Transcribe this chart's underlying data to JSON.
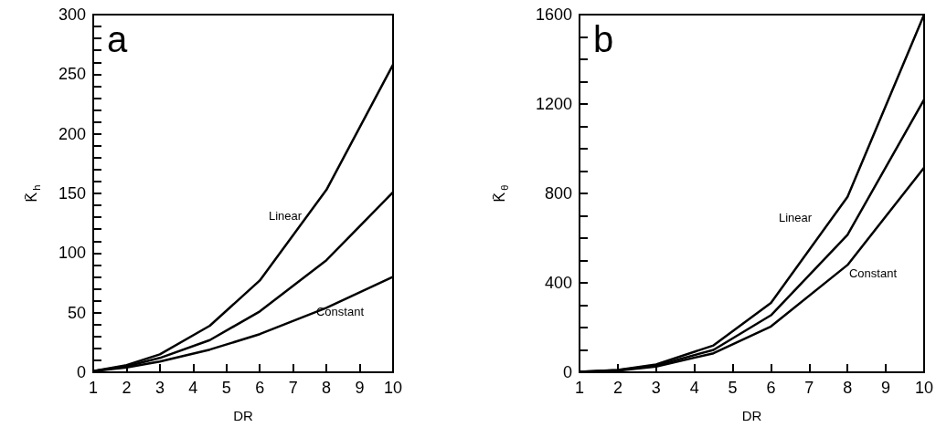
{
  "chart_data": [
    {
      "type": "line",
      "title": "a",
      "xlabel": "DR",
      "ylabel": "K̄$_{h}$",
      "x": [
        1,
        2,
        3,
        4.5,
        6,
        8,
        10
      ],
      "series": [
        {
          "color": "#000000",
          "values": [
            1,
            6,
            15,
            39,
            77,
            153,
            258
          ]
        },
        {
          "color": "#000000",
          "values": [
            1,
            5,
            12,
            27,
            51,
            94,
            151
          ]
        },
        {
          "color": "#000000",
          "values": [
            1,
            4,
            9,
            19,
            32,
            54,
            80
          ]
        }
      ],
      "xlim": [
        1,
        10
      ],
      "xticks": [
        1,
        2,
        3,
        4,
        5,
        6,
        7,
        8,
        9,
        10
      ],
      "ylim": [
        0,
        300
      ],
      "yticks": [
        0,
        {
          "value": 10,
          "label": null
        },
        {
          "value": 20,
          "label": null
        },
        {
          "value": 30,
          "label": null
        },
        {
          "value": 40,
          "label": null
        },
        50,
        {
          "value": 60,
          "label": null
        },
        {
          "value": 70,
          "label": null
        },
        {
          "value": 80,
          "label": null
        },
        {
          "value": 90,
          "label": null
        },
        100,
        {
          "value": 110,
          "label": null
        },
        {
          "value": 120,
          "label": null
        },
        {
          "value": 130,
          "label": null
        },
        {
          "value": 140,
          "label": null
        },
        150,
        {
          "value": 160,
          "label": null
        },
        {
          "value": 170,
          "label": null
        },
        {
          "value": 180,
          "label": null
        },
        {
          "value": 190,
          "label": null
        },
        200,
        {
          "value": 210,
          "label": null
        },
        {
          "value": 220,
          "label": null
        },
        {
          "value": 230,
          "label": null
        },
        {
          "value": 240,
          "label": null
        },
        250,
        {
          "value": 260,
          "label": null
        },
        {
          "value": 270,
          "label": null
        },
        {
          "value": 280,
          "label": null
        },
        {
          "value": 290,
          "label": null
        },
        300
      ],
      "annotations": [
        "Linear",
        "Constant"
      ],
      "grid": false,
      "marker": "none",
      "line_style": "solid"
    },
    {
      "type": "line",
      "title": "b",
      "xlabel": "DR",
      "ylabel": "K̄$_{θ}$",
      "x": [
        1,
        2,
        3,
        4.5,
        6,
        8,
        10
      ],
      "series": [
        {
          "color": "#000000",
          "values": [
            2,
            10,
            35,
            120,
            310,
            785,
            1600
          ]
        },
        {
          "color": "#000000",
          "values": [
            2,
            9,
            30,
            100,
            255,
            615,
            1220
          ]
        },
        {
          "color": "#000000",
          "values": [
            1,
            7,
            25,
            85,
            205,
            480,
            915
          ]
        }
      ],
      "xlim": [
        1,
        10
      ],
      "xticks": [
        1,
        2,
        3,
        4,
        5,
        6,
        7,
        8,
        9,
        10
      ],
      "ylim": [
        0,
        1600
      ],
      "yticks": [
        0,
        {
          "value": 100,
          "label": null
        },
        {
          "value": 200,
          "label": null
        },
        {
          "value": 300,
          "label": null
        },
        400,
        {
          "value": 500,
          "label": null
        },
        {
          "value": 600,
          "label": null
        },
        {
          "value": 700,
          "label": null
        },
        800,
        {
          "value": 900,
          "label": null
        },
        {
          "value": 1000,
          "label": null
        },
        {
          "value": 1100,
          "label": null
        },
        1200,
        {
          "value": 1300,
          "label": null
        },
        {
          "value": 1400,
          "label": null
        },
        {
          "value": 1500,
          "label": null
        },
        1600
      ],
      "annotations": [
        "Linear",
        "Constant"
      ],
      "grid": false,
      "marker": "none",
      "line_style": "solid"
    }
  ]
}
